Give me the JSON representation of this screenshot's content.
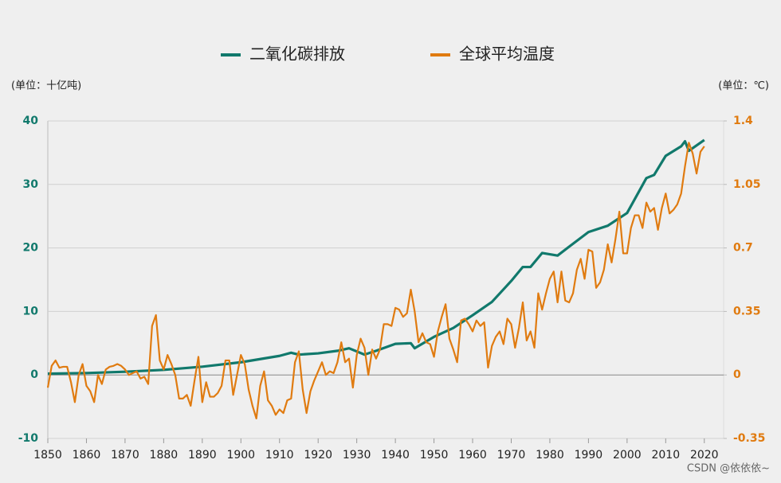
{
  "chart_data": {
    "type": "line",
    "legend": "top",
    "ylabel": "(单位：十亿吨)",
    "y2label": "(单位：℃)",
    "watermark": "CSDN @依依依~",
    "xlim": [
      1850,
      2025
    ],
    "xticks": [
      1850,
      1860,
      1870,
      1880,
      1890,
      1900,
      1910,
      1920,
      1930,
      1940,
      1950,
      1960,
      1970,
      1980,
      1990,
      2000,
      2010,
      2020
    ],
    "ylim": [
      -10,
      40
    ],
    "yticks": [
      -10,
      0,
      10,
      20,
      30,
      40
    ],
    "y2lim": [
      -0.35,
      1.4
    ],
    "y2ticks": [
      -0.35,
      0,
      0.35,
      0.7,
      1.05,
      1.4
    ],
    "grid": true,
    "series": [
      {
        "name": "二氧化碳排放",
        "color": "#11796c",
        "axis": "y",
        "x": [
          1850,
          1860,
          1870,
          1880,
          1890,
          1900,
          1910,
          1913,
          1915,
          1920,
          1925,
          1928,
          1932,
          1935,
          1940,
          1944,
          1945,
          1950,
          1955,
          1960,
          1965,
          1970,
          1973,
          1975,
          1978,
          1982,
          1985,
          1990,
          1995,
          2000,
          2005,
          2007,
          2010,
          2014,
          2015,
          2016,
          2020
        ],
        "values": [
          0.2,
          0.3,
          0.5,
          0.8,
          1.3,
          2.0,
          3.0,
          3.5,
          3.2,
          3.4,
          3.8,
          4.2,
          3.2,
          3.8,
          4.9,
          5.0,
          4.2,
          6.0,
          7.4,
          9.4,
          11.5,
          14.8,
          17.0,
          17.0,
          19.2,
          18.8,
          20.2,
          22.5,
          23.5,
          25.5,
          31.0,
          31.5,
          34.5,
          36.0,
          36.8,
          35.3,
          37.0
        ]
      },
      {
        "name": "全球平均温度",
        "color": "#e07b10",
        "axis": "y2",
        "x": [
          1850,
          1851,
          1852,
          1853,
          1854,
          1855,
          1856,
          1857,
          1858,
          1859,
          1860,
          1861,
          1862,
          1863,
          1864,
          1865,
          1866,
          1867,
          1868,
          1869,
          1870,
          1871,
          1872,
          1873,
          1874,
          1875,
          1876,
          1877,
          1878,
          1879,
          1880,
          1881,
          1882,
          1883,
          1884,
          1885,
          1886,
          1887,
          1888,
          1889,
          1890,
          1891,
          1892,
          1893,
          1894,
          1895,
          1896,
          1897,
          1898,
          1899,
          1900,
          1901,
          1902,
          1903,
          1904,
          1905,
          1906,
          1907,
          1908,
          1909,
          1910,
          1911,
          1912,
          1913,
          1914,
          1915,
          1916,
          1917,
          1918,
          1919,
          1920,
          1921,
          1922,
          1923,
          1924,
          1925,
          1926,
          1927,
          1928,
          1929,
          1930,
          1931,
          1932,
          1933,
          1934,
          1935,
          1936,
          1937,
          1938,
          1939,
          1940,
          1941,
          1942,
          1943,
          1944,
          1945,
          1946,
          1947,
          1948,
          1949,
          1950,
          1951,
          1952,
          1953,
          1954,
          1955,
          1956,
          1957,
          1958,
          1959,
          1960,
          1961,
          1962,
          1963,
          1964,
          1965,
          1966,
          1967,
          1968,
          1969,
          1970,
          1971,
          1972,
          1973,
          1974,
          1975,
          1976,
          1977,
          1978,
          1979,
          1980,
          1981,
          1982,
          1983,
          1984,
          1985,
          1986,
          1987,
          1988,
          1989,
          1990,
          1991,
          1992,
          1993,
          1994,
          1995,
          1996,
          1997,
          1998,
          1999,
          2000,
          2001,
          2002,
          2003,
          2004,
          2005,
          2006,
          2007,
          2008,
          2009,
          2010,
          2011,
          2012,
          2013,
          2014,
          2015,
          2016,
          2017,
          2018,
          2019,
          2020
        ],
        "values": [
          -0.07,
          0.05,
          0.08,
          0.04,
          0.045,
          0.045,
          -0.04,
          -0.15,
          0.0,
          0.06,
          -0.06,
          -0.09,
          -0.15,
          0,
          -0.05,
          0.03,
          0.045,
          0.05,
          0.06,
          0.05,
          0.03,
          0,
          0.01,
          0.02,
          -0.02,
          -0.01,
          -0.05,
          0.27,
          0.33,
          0.08,
          0.03,
          0.11,
          0.06,
          0,
          -0.13,
          -0.13,
          -0.11,
          -0.17,
          -0.03,
          0.1,
          -0.15,
          -0.04,
          -0.12,
          -0.12,
          -0.1,
          -0.06,
          0.08,
          0.08,
          -0.11,
          0,
          0.11,
          0.06,
          -0.08,
          -0.17,
          -0.24,
          -0.06,
          0.02,
          -0.14,
          -0.17,
          -0.22,
          -0.19,
          -0.21,
          -0.14,
          -0.13,
          0.07,
          0.13,
          -0.08,
          -0.21,
          -0.09,
          -0.03,
          0.02,
          0.07,
          0,
          0.02,
          0.01,
          0.07,
          0.18,
          0.07,
          0.09,
          -0.07,
          0.11,
          0.2,
          0.15,
          0,
          0.14,
          0.09,
          0.14,
          0.28,
          0.28,
          0.27,
          0.37,
          0.36,
          0.32,
          0.34,
          0.47,
          0.35,
          0.18,
          0.23,
          0.18,
          0.17,
          0.1,
          0.24,
          0.32,
          0.39,
          0.2,
          0.14,
          0.07,
          0.3,
          0.31,
          0.28,
          0.24,
          0.3,
          0.27,
          0.29,
          0.04,
          0.16,
          0.21,
          0.24,
          0.17,
          0.31,
          0.28,
          0.15,
          0.26,
          0.4,
          0.19,
          0.24,
          0.15,
          0.45,
          0.36,
          0.45,
          0.53,
          0.57,
          0.4,
          0.57,
          0.41,
          0.4,
          0.45,
          0.58,
          0.64,
          0.53,
          0.69,
          0.68,
          0.48,
          0.51,
          0.58,
          0.72,
          0.62,
          0.75,
          0.9,
          0.67,
          0.67,
          0.81,
          0.88,
          0.88,
          0.81,
          0.95,
          0.9,
          0.92,
          0.8,
          0.92,
          1.0,
          0.89,
          0.91,
          0.94,
          1.0,
          1.15,
          1.28,
          1.22,
          1.11,
          1.23,
          1.26
        ]
      }
    ]
  }
}
